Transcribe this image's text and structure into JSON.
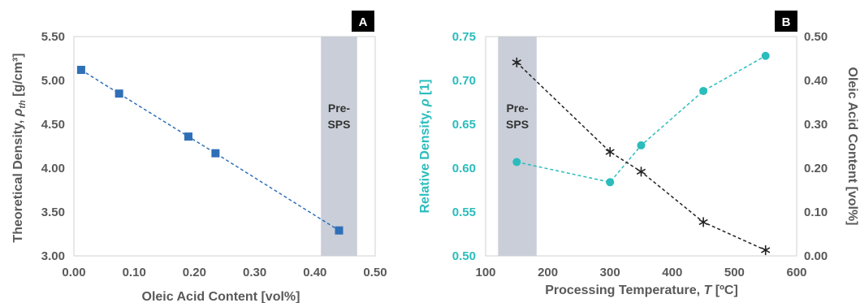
{
  "colors": {
    "blue_series": "#2f6fb8",
    "teal_series": "#2bbcbc",
    "black_series": "#222222",
    "band": "#c9ced8",
    "axis_text": "#595959"
  },
  "chart_data": [
    {
      "panel": "A",
      "type": "scatter",
      "xlabel": "Oleic Acid Content [vol%]",
      "ylabel": "Theoretical Density, ρth [g/cm³]",
      "ylabel_main": "Theoretical Density, ",
      "ylabel_symbol": "ρ",
      "ylabel_sub": "th",
      "ylabel_units": " [g/cm³]",
      "xlim": [
        0.0,
        0.5
      ],
      "ylim": [
        3.0,
        5.5
      ],
      "xticks": [
        "0.00",
        "0.10",
        "0.20",
        "0.30",
        "0.40",
        "0.50"
      ],
      "yticks": [
        "3.00",
        "3.50",
        "4.00",
        "4.50",
        "5.00",
        "5.50"
      ],
      "shaded_region": {
        "x": [
          0.41,
          0.47
        ],
        "label_line1": "Pre-",
        "label_line2": "SPS"
      },
      "series": [
        {
          "marker": "square",
          "line": "dashed",
          "x": [
            0.012,
            0.075,
            0.19,
            0.235,
            0.44
          ],
          "y": [
            5.12,
            4.85,
            4.36,
            4.17,
            3.29
          ]
        }
      ]
    },
    {
      "panel": "B",
      "type": "line",
      "xlabel": "Processing Temperature, T [ºC]",
      "xlabel_main": "Processing Temperature, ",
      "xlabel_symbol": "T",
      "xlabel_units": " [ºC]",
      "ylabel": "Relative Density, ρ [1]",
      "ylabel_main": "Relative Density, ",
      "ylabel_symbol": "ρ",
      "ylabel_units": " [1]",
      "y2label": "Oleic Acid Content [vol%]",
      "xlim": [
        100,
        600
      ],
      "ylim": [
        0.5,
        0.75
      ],
      "y2lim": [
        0.0,
        0.5
      ],
      "xticks": [
        "100",
        "200",
        "300",
        "400",
        "500",
        "600"
      ],
      "yticks": [
        "0.50",
        "0.55",
        "0.60",
        "0.65",
        "0.70",
        "0.75"
      ],
      "y2ticks": [
        "0.00",
        "0.10",
        "0.20",
        "0.30",
        "0.40",
        "0.50"
      ],
      "shaded_region": {
        "x": [
          120,
          182
        ],
        "label_line1": "Pre-",
        "label_line2": "SPS"
      },
      "series": [
        {
          "axis": "left",
          "marker": "circle",
          "line": "dashed",
          "x": [
            150,
            300,
            350,
            450,
            550
          ],
          "y": [
            0.607,
            0.584,
            0.626,
            0.688,
            0.728
          ]
        },
        {
          "axis": "right",
          "marker": "asterisk",
          "line": "dashed",
          "x": [
            150,
            300,
            350,
            450,
            550
          ],
          "y": [
            0.441,
            0.237,
            0.192,
            0.077,
            0.013
          ]
        }
      ]
    }
  ]
}
